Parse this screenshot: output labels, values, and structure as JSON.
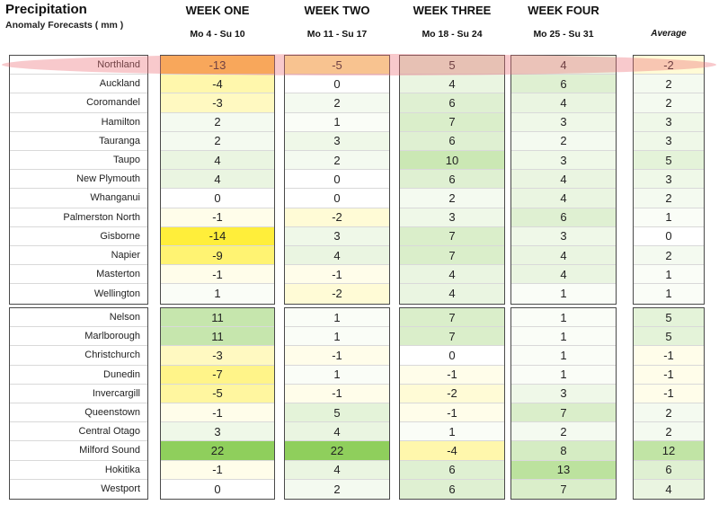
{
  "header": {
    "title": "Precipitation",
    "subtitle": "Anomaly Forecasts ( mm )",
    "weeks": [
      {
        "label": "WEEK ONE",
        "dates": "Mo 4 - Su 10"
      },
      {
        "label": "WEEK TWO",
        "dates": "Mo 11 - Su 17"
      },
      {
        "label": "WEEK THREE",
        "dates": "Mo 18 - Su 24"
      },
      {
        "label": "WEEK FOUR",
        "dates": "Mo 25 - Su 31"
      }
    ],
    "average_label": "Average"
  },
  "highlighted_row": "Northland",
  "colors": {
    "strong_wet": "#8fcf5c",
    "light_wet": "#dcefcd",
    "neutral": "#ffffff",
    "light_dry": "#fff7a8",
    "strong_dry": "#ffee3a",
    "highlight": "#ec7078"
  },
  "chart_data": {
    "type": "table",
    "columns": [
      "WEEK ONE",
      "WEEK TWO",
      "WEEK THREE",
      "WEEK FOUR",
      "Average"
    ],
    "groups": [
      {
        "regions": [
          "Northland",
          "Auckland",
          "Coromandel",
          "Hamilton",
          "Tauranga",
          "Taupo",
          "New Plymouth",
          "Whanganui",
          "Palmerston North",
          "Gisborne",
          "Napier",
          "Masterton",
          "Wellington"
        ],
        "values": [
          [
            -13,
            -5,
            5,
            4,
            -2
          ],
          [
            -4,
            0,
            4,
            6,
            2
          ],
          [
            -3,
            2,
            6,
            4,
            2
          ],
          [
            2,
            1,
            7,
            3,
            3
          ],
          [
            2,
            3,
            6,
            2,
            3
          ],
          [
            4,
            2,
            10,
            3,
            5
          ],
          [
            4,
            0,
            6,
            4,
            3
          ],
          [
            0,
            0,
            2,
            4,
            2
          ],
          [
            -1,
            -2,
            3,
            6,
            1
          ],
          [
            -14,
            3,
            7,
            3,
            0
          ],
          [
            -9,
            4,
            7,
            4,
            2
          ],
          [
            -1,
            -1,
            4,
            4,
            1
          ],
          [
            1,
            -2,
            4,
            1,
            1
          ]
        ]
      },
      {
        "regions": [
          "Nelson",
          "Marlborough",
          "Christchurch",
          "Dunedin",
          "Invercargill",
          "Queenstown",
          "Central Otago",
          "Milford Sound",
          "Hokitika",
          "Westport"
        ],
        "values": [
          [
            11,
            1,
            7,
            1,
            5
          ],
          [
            11,
            1,
            7,
            1,
            5
          ],
          [
            -3,
            -1,
            0,
            1,
            -1
          ],
          [
            -7,
            1,
            -1,
            1,
            -1
          ],
          [
            -5,
            -1,
            -2,
            3,
            -1
          ],
          [
            -1,
            5,
            -1,
            7,
            2
          ],
          [
            3,
            4,
            1,
            2,
            2
          ],
          [
            22,
            22,
            -4,
            8,
            12
          ],
          [
            -1,
            4,
            6,
            13,
            6
          ],
          [
            0,
            2,
            6,
            7,
            4
          ]
        ]
      }
    ]
  }
}
